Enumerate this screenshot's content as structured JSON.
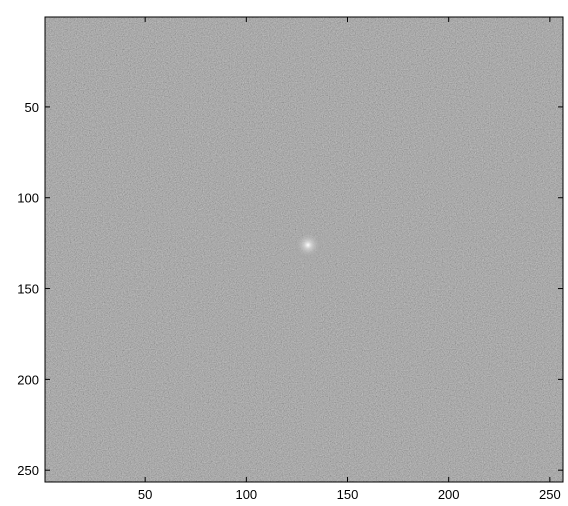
{
  "chart_data": {
    "type": "image",
    "colormap": "gray",
    "xlim": [
      0.5,
      256.5
    ],
    "ylim": [
      0.5,
      256.5
    ],
    "y_reversed": true,
    "xticks": [
      50,
      100,
      150,
      200,
      250
    ],
    "yticks": [
      50,
      100,
      150,
      200,
      250
    ]
  }
}
